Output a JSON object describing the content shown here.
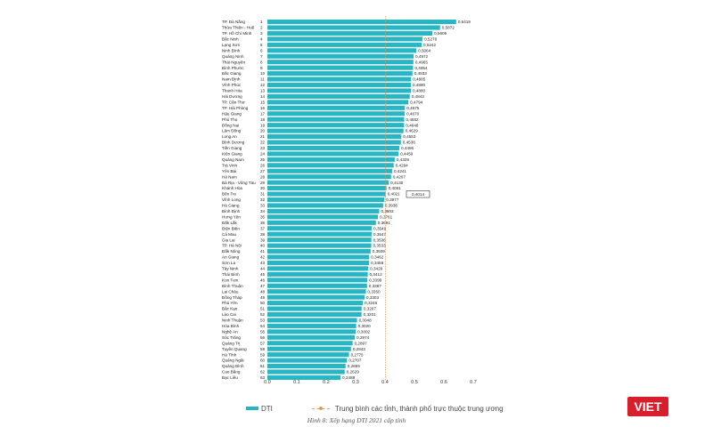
{
  "chart_data": {
    "type": "bar",
    "orientation": "horizontal",
    "categories": [
      "TP. Đà Nẵng",
      "Thừa Thiên - Huế",
      "TP. Hồ Chí Minh",
      "Bắc Ninh",
      "Lạng Sơn",
      "Ninh Bình",
      "Quảng Ninh",
      "Thái Nguyên",
      "Bình Phước",
      "Bắc Giang",
      "Nam Định",
      "Vĩnh Phúc",
      "Thanh Hóa",
      "Hải Dương",
      "TP. Cần Thơ",
      "TP. Hải Phòng",
      "Hậu Giang",
      "Phú Thọ",
      "Đồng Nai",
      "Lâm Đồng",
      "Long An",
      "Bình Dương",
      "Tiền Giang",
      "Kiên Giang",
      "Quảng Nam",
      "Trà Vinh",
      "Yên Bái",
      "Hà Nam",
      "Bà Rịa - Vũng Tàu",
      "Khánh Hòa",
      "Bến Tre",
      "Vĩnh Long",
      "Hà Giang",
      "Bình Định",
      "Hưng Yên",
      "Đắk Lắk",
      "Điện Biên",
      "Cà Mau",
      "Gia Lai",
      "TP. Hà Nội",
      "Đắk Nông",
      "An Giang",
      "Sơn La",
      "Tây Ninh",
      "Thái Bình",
      "Kon Tum",
      "Bình Thuận",
      "Lai Châu",
      "Đồng Tháp",
      "Phú Yên",
      "Bắc Kạn",
      "Lào Cai",
      "Ninh Thuận",
      "Hòa Bình",
      "Nghệ An",
      "Sóc Trăng",
      "Quảng Trị",
      "Tuyên Quang",
      "Hà Tĩnh",
      "Quảng Ngãi",
      "Quảng Bình",
      "Cao Bằng",
      "Bạc Liêu"
    ],
    "ranks": [
      "1",
      "2",
      "3",
      "4",
      "5",
      "6",
      "7",
      "8",
      "9",
      "10",
      "11",
      "12",
      "13",
      "14",
      "15",
      "16",
      "17",
      "18",
      "19",
      "20",
      "21",
      "22",
      "23",
      "24",
      "25",
      "26",
      "27",
      "28",
      "29",
      "30",
      "31",
      "32",
      "33",
      "34",
      "35",
      "36",
      "37",
      "38",
      "39",
      "40",
      "41",
      "42",
      "43",
      "44",
      "45",
      "46",
      "47",
      "48",
      "49",
      "50",
      "51",
      "52",
      "53",
      "54",
      "55",
      "56",
      "57",
      "58",
      "59",
      "60",
      "61",
      "62",
      "63"
    ],
    "values": [
      0.6419,
      0.5872,
      0.5609,
      0.5276,
      0.5242,
      0.5064,
      0.4972,
      0.4965,
      0.4954,
      0.4933,
      0.4885,
      0.488,
      0.488,
      0.4843,
      0.4794,
      0.4675,
      0.467,
      0.4652,
      0.4648,
      0.4629,
      0.4553,
      0.4538,
      0.4486,
      0.4459,
      0.4329,
      0.4294,
      0.4241,
      0.4207,
      0.413,
      0.4051,
      0.4021,
      0.3977,
      0.3936,
      0.3803,
      0.3761,
      0.3691,
      0.3549,
      0.3547,
      0.3536,
      0.3533,
      0.3509,
      0.3462,
      0.3458,
      0.3429,
      0.3412,
      0.3399,
      0.3387,
      0.335,
      0.3303,
      0.3246,
      0.3207,
      0.3201,
      0.3048,
      0.302,
      0.3002,
      0.2974,
      0.2897,
      0.2843,
      0.2775,
      0.2707,
      0.2659,
      0.2629,
      0.2489
    ],
    "value_labels": [
      "0,6419",
      "0,5872",
      "0,5609",
      "0,5276",
      "0,5242",
      "0,5064",
      "0,4972",
      "0,4965",
      "0,4954",
      "0,4933",
      "0,4885",
      "0,4880",
      "0,4880",
      "0,4843",
      "0,4794",
      "0,4675",
      "0,4670",
      "0,4652",
      "0,4648",
      "0,4629",
      "0,4553",
      "0,4538",
      "0,4486",
      "0,4459",
      "0,4329",
      "0,4294",
      "0,4241",
      "0,4207",
      "0,4130",
      "0,4051",
      "0,4021",
      "0,3977",
      "0,3936",
      "0,3803",
      "0,3761",
      "0,3691",
      "0,3549",
      "0,3547",
      "0,3536",
      "0,3533",
      "0,3509",
      "0,3462",
      "0,3458",
      "0,3429",
      "0,3412",
      "0,3399",
      "0,3387",
      "0,3350",
      "0,3303",
      "0,3246",
      "0,3207",
      "0,3201",
      "0,3048",
      "0,3020",
      "0,3002",
      "0,2974",
      "0,2897",
      "0,2843",
      "0,2775",
      "0,2707",
      "0,2659",
      "0,2629",
      "0,2489"
    ],
    "average": {
      "value": 0.4014,
      "label": "0,4014"
    },
    "xlim": [
      0,
      0.7
    ],
    "xticks": [
      "0.0",
      "0.1",
      "0.2",
      "0.3",
      "0.4",
      "0.5",
      "0.6",
      "0.7"
    ],
    "grid": false,
    "legend_position": "bottom",
    "series": [
      {
        "name": "DTI",
        "color": "#29b6c4"
      },
      {
        "name": "Trung bình các tỉnh, thành phố trực thuộc trung ương",
        "color": "#e39b5a"
      }
    ],
    "caption": "Hình 8: Xếp hạng DTI 2021 cấp tỉnh"
  },
  "legend": {
    "dti_label": "DTI",
    "avg_label": "Trung bình các tỉnh, thành phố trực thuộc trung ương"
  },
  "caption": "Hình 8: Xếp hạng DTI 2021 cấp tỉnh",
  "brand": "VIET"
}
